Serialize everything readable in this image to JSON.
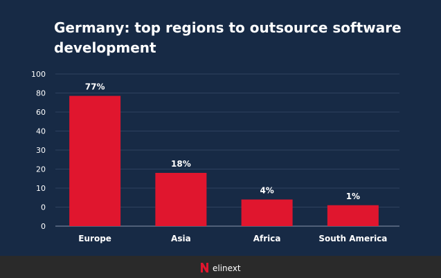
{
  "chart_data": {
    "type": "bar",
    "title": "Germany: top regions to outsource software development",
    "categories": [
      "Europe",
      "Asia",
      "Africa",
      "South America"
    ],
    "values": [
      77,
      18,
      4,
      1
    ],
    "data_labels": [
      "77%",
      "18%",
      "4%",
      "1%"
    ],
    "y_tick_labels": [
      "100",
      "80",
      "60",
      "40",
      "30",
      "20",
      "10",
      "0",
      "0"
    ],
    "grid": true,
    "xlabel": "",
    "ylabel": "",
    "colors": {
      "bar": "#e0162e",
      "background": "#172a45",
      "grid": "#2f4260",
      "text": "#ffffff"
    }
  },
  "footer": {
    "brand": "elinext"
  }
}
